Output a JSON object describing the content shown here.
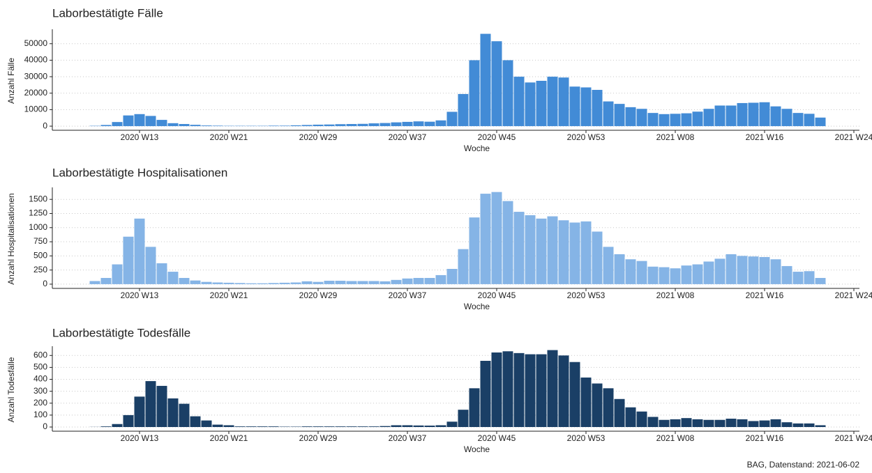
{
  "chart_data": [
    {
      "type": "bar",
      "title": "Laborbestätigte Fälle",
      "xlabel": "Woche",
      "ylabel": "Anzahl Fälle",
      "color": "#428bd6",
      "grid": true,
      "categories": [
        null,
        null,
        null,
        null,
        null,
        null,
        null,
        "2020 W13",
        null,
        null,
        null,
        null,
        null,
        null,
        null,
        "2020 W21",
        null,
        null,
        null,
        null,
        null,
        null,
        null,
        "2020 W29",
        null,
        null,
        null,
        null,
        null,
        null,
        null,
        "2020 W37",
        null,
        null,
        null,
        null,
        null,
        null,
        null,
        "2020 W45",
        null,
        null,
        null,
        null,
        null,
        null,
        null,
        "2020 W53",
        null,
        null,
        null,
        null,
        null,
        null,
        null,
        "2021 W08",
        null,
        null,
        null,
        null,
        null,
        null,
        null,
        "2021 W16",
        null,
        null,
        null,
        null,
        null,
        null,
        null,
        "2021 W24"
      ],
      "values": [
        null,
        null,
        null,
        200,
        700,
        2500,
        6500,
        7300,
        6200,
        3800,
        1800,
        1300,
        800,
        400,
        300,
        200,
        200,
        200,
        200,
        300,
        300,
        500,
        700,
        900,
        1000,
        1200,
        1300,
        1400,
        1700,
        1900,
        2300,
        2600,
        2900,
        2700,
        3500,
        8700,
        19500,
        40000,
        56000,
        51500,
        40000,
        30000,
        26500,
        27500,
        30000,
        29500,
        24000,
        23500,
        22000,
        15000,
        13500,
        11500,
        10500,
        8000,
        7300,
        7500,
        7800,
        8800,
        10500,
        12500,
        12500,
        14000,
        14200,
        14500,
        12000,
        10500,
        8000,
        7500,
        5200,
        null,
        null,
        null
      ],
      "ylim": [
        -2500,
        57500
      ],
      "yticks": [
        0,
        10000,
        20000,
        30000,
        40000,
        50000
      ]
    },
    {
      "type": "bar",
      "title": "Laborbestätigte Hospitalisationen",
      "xlabel": "Woche",
      "ylabel": "Anzahl Hospitalisationen",
      "color": "#85b4e6",
      "grid": true,
      "categories": [
        null,
        null,
        null,
        null,
        null,
        null,
        null,
        "2020 W13",
        null,
        null,
        null,
        null,
        null,
        null,
        null,
        "2020 W21",
        null,
        null,
        null,
        null,
        null,
        null,
        null,
        "2020 W29",
        null,
        null,
        null,
        null,
        null,
        null,
        null,
        "2020 W37",
        null,
        null,
        null,
        null,
        null,
        null,
        null,
        "2020 W45",
        null,
        null,
        null,
        null,
        null,
        null,
        null,
        "2020 W53",
        null,
        null,
        null,
        null,
        null,
        null,
        null,
        "2021 W08",
        null,
        null,
        null,
        null,
        null,
        null,
        null,
        "2021 W16",
        null,
        null,
        null,
        null,
        null,
        null,
        null,
        "2021 W24"
      ],
      "values": [
        null,
        null,
        null,
        55,
        110,
        350,
        840,
        1160,
        660,
        370,
        220,
        110,
        65,
        40,
        30,
        25,
        20,
        15,
        15,
        20,
        25,
        30,
        50,
        40,
        60,
        60,
        55,
        55,
        55,
        50,
        75,
        100,
        110,
        110,
        160,
        270,
        620,
        1180,
        1600,
        1630,
        1470,
        1280,
        1220,
        1160,
        1200,
        1130,
        1090,
        1110,
        930,
        660,
        530,
        440,
        410,
        310,
        300,
        280,
        330,
        350,
        400,
        450,
        530,
        500,
        490,
        480,
        440,
        320,
        220,
        230,
        110,
        null,
        null,
        null
      ],
      "ylim": [
        -75,
        1675
      ],
      "yticks": [
        0,
        250,
        500,
        750,
        1000,
        1250,
        1500
      ]
    },
    {
      "type": "bar",
      "title": "Laborbestätigte Todesfälle",
      "xlabel": "Woche",
      "ylabel": "Anzahl Todesfälle",
      "color": "#1a3f66",
      "grid": true,
      "categories": [
        null,
        null,
        null,
        null,
        null,
        null,
        null,
        "2020 W13",
        null,
        null,
        null,
        null,
        null,
        null,
        null,
        "2020 W21",
        null,
        null,
        null,
        null,
        null,
        null,
        null,
        "2020 W29",
        null,
        null,
        null,
        null,
        null,
        null,
        null,
        "2020 W37",
        null,
        null,
        null,
        null,
        null,
        null,
        null,
        "2020 W45",
        null,
        null,
        null,
        null,
        null,
        null,
        null,
        "2020 W53",
        null,
        null,
        null,
        null,
        null,
        null,
        null,
        "2021 W08",
        null,
        null,
        null,
        null,
        null,
        null,
        null,
        "2021 W16",
        null,
        null,
        null,
        null,
        null,
        null,
        null,
        "2021 W24"
      ],
      "values": [
        null,
        null,
        null,
        1,
        5,
        25,
        100,
        255,
        385,
        345,
        240,
        195,
        90,
        55,
        20,
        15,
        5,
        5,
        5,
        5,
        3,
        3,
        5,
        5,
        5,
        5,
        5,
        5,
        5,
        8,
        15,
        15,
        13,
        12,
        15,
        45,
        145,
        325,
        555,
        625,
        635,
        620,
        610,
        610,
        645,
        600,
        545,
        415,
        365,
        325,
        235,
        165,
        130,
        85,
        60,
        65,
        75,
        65,
        60,
        60,
        70,
        65,
        50,
        55,
        65,
        40,
        30,
        30,
        15,
        null,
        null,
        null
      ],
      "ylim": [
        -35,
        660
      ],
      "yticks": [
        0,
        100,
        200,
        300,
        400,
        500,
        600
      ]
    }
  ],
  "caption": "BAG, Datenstand: 2021-06-02"
}
